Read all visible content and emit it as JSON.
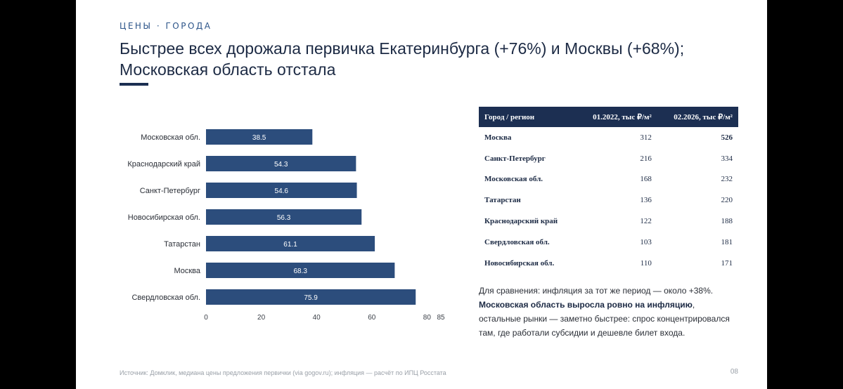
{
  "header": {
    "eyebrow": "ЦЕНЫ · ГОРОДА",
    "title": "Быстрее всех дорожала первичка Екатеринбурга (+76%) и Москвы (+68%); Московская область отстала"
  },
  "chart_data": {
    "type": "bar",
    "orientation": "horizontal",
    "categories": [
      "Московская обл.",
      "Краснодарский край",
      "Санкт-Петербург",
      "Новосибирская обл.",
      "Татарстан",
      "Москва",
      "Свердловская обл."
    ],
    "values": [
      38.5,
      54.3,
      54.6,
      56.3,
      61.1,
      68.3,
      75.9
    ],
    "x_ticks": [
      "0",
      "20",
      "40",
      "60",
      "80",
      "85"
    ],
    "xlim": [
      0,
      85
    ],
    "bar_color": "#2c4d7c",
    "grid": false
  },
  "table": {
    "headers": [
      "Город / регион",
      "01.2022, тыс ₽/м²",
      "02.2026, тыс ₽/м²"
    ],
    "rows": [
      [
        "Москва",
        "312",
        "526"
      ],
      [
        "Санкт-Петербург",
        "216",
        "334"
      ],
      [
        "Московская обл.",
        "168",
        "232"
      ],
      [
        "Татарстан",
        "136",
        "220"
      ],
      [
        "Краснодарский край",
        "122",
        "188"
      ],
      [
        "Свердловская обл.",
        "103",
        "181"
      ],
      [
        "Новосибирская обл.",
        "110",
        "171"
      ]
    ]
  },
  "note": {
    "line1": "Для сравнения: инфляция за тот же период — около +38%.",
    "bold": "Московская область выросла ровно на инфляцию",
    "rest": ", остальные рынки — заметно быстрее: спрос концентрировался там, где работали субсидии и дешевле билет входа."
  },
  "footer": {
    "source": "Источник: Домклик, медиана цены предложения первички (via gogov.ru); инфляция — расчёт по ИПЦ Росстата",
    "page": "08"
  },
  "colors": {
    "accent": "#1c2f52",
    "bar": "#2c4d7c",
    "eyebrow": "#2c5489"
  }
}
